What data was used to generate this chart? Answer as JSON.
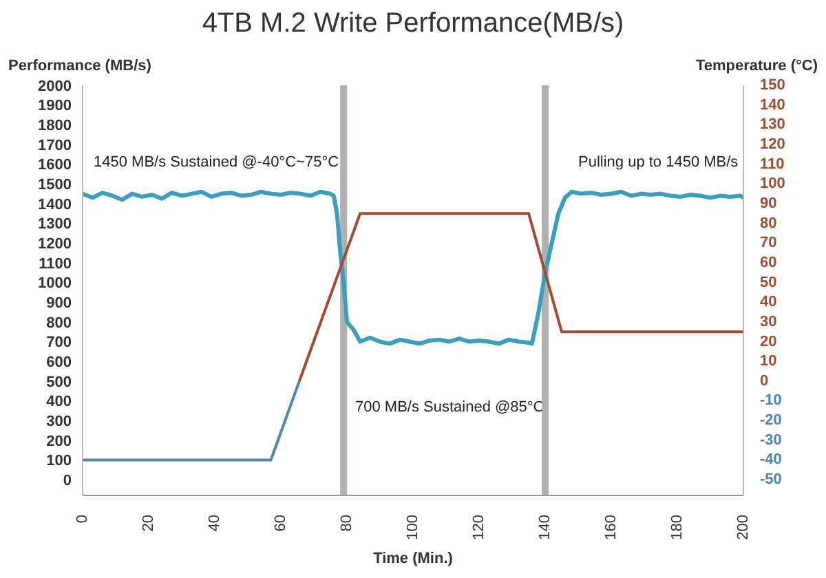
{
  "chart_data": {
    "type": "line",
    "title": "4TB M.2 Write Performance(MB/s)",
    "xlabel": "Time (Min.)",
    "ylabel": "Performance (MB/s)",
    "y2label": "Temperature (°C)",
    "xlim": [
      0,
      200
    ],
    "xticks": [
      0,
      20,
      40,
      60,
      80,
      100,
      120,
      140,
      160,
      180,
      200
    ],
    "ylim": [
      -80,
      2000
    ],
    "yticks": [
      0,
      100,
      200,
      300,
      400,
      500,
      600,
      700,
      800,
      900,
      1000,
      1100,
      1200,
      1300,
      1400,
      1500,
      1600,
      1700,
      1800,
      1900,
      2000
    ],
    "y2lim": [
      -58,
      150
    ],
    "y2ticks": [
      -50,
      -40,
      -30,
      -20,
      -10,
      0,
      10,
      20,
      30,
      40,
      50,
      60,
      70,
      80,
      90,
      100,
      110,
      120,
      130,
      140,
      150
    ],
    "marker": "none",
    "line_style": "solid",
    "annotations": [
      "1450 MB/s Sustained @-40°C~75°C",
      "700 MB/s Sustained @85°C",
      "Pulling up to 1450 MB/s"
    ],
    "ref_lines": [
      {
        "axis": "x",
        "value": 79,
        "color": "#b0b0b0"
      },
      {
        "axis": "x",
        "value": 140,
        "color": "#b0b0b0"
      }
    ],
    "series": [
      {
        "color": "#3a9ec0",
        "x": [
          0,
          3,
          6,
          9,
          12,
          15,
          18,
          21,
          24,
          27,
          30,
          33,
          36,
          39,
          42,
          45,
          48,
          51,
          54,
          57,
          60,
          63,
          66,
          69,
          72,
          75,
          76,
          77,
          78,
          79,
          80,
          82,
          84,
          87,
          90,
          93,
          96,
          99,
          102,
          105,
          108,
          111,
          114,
          117,
          120,
          123,
          126,
          129,
          132,
          135,
          136,
          138,
          140,
          142,
          144,
          146,
          148,
          151,
          154,
          157,
          160,
          163,
          166,
          169,
          172,
          175,
          178,
          181,
          184,
          187,
          190,
          193,
          196,
          199,
          200
        ],
        "values": [
          1450,
          1430,
          1455,
          1440,
          1420,
          1450,
          1435,
          1445,
          1425,
          1455,
          1440,
          1450,
          1460,
          1435,
          1450,
          1455,
          1440,
          1445,
          1460,
          1450,
          1445,
          1455,
          1450,
          1440,
          1460,
          1450,
          1440,
          1350,
          1150,
          1000,
          800,
          760,
          700,
          720,
          700,
          690,
          710,
          700,
          690,
          705,
          710,
          700,
          715,
          700,
          705,
          700,
          690,
          710,
          700,
          695,
          690,
          850,
          1050,
          1200,
          1350,
          1430,
          1460,
          1450,
          1455,
          1445,
          1450,
          1460,
          1440,
          1450,
          1445,
          1450,
          1440,
          1435,
          1445,
          1440,
          1430,
          1440,
          1435,
          1440,
          1430
        ]
      },
      {
        "color": "#4a86b8",
        "axis": "y2",
        "x": [
          0,
          57,
          65.6
        ],
        "values": [
          -40,
          -40,
          0
        ]
      },
      {
        "color": "#a34a2e",
        "axis": "y2",
        "x": [
          65.6,
          84,
          135,
          145,
          200
        ],
        "values": [
          0,
          85,
          85,
          25,
          25
        ]
      }
    ]
  }
}
